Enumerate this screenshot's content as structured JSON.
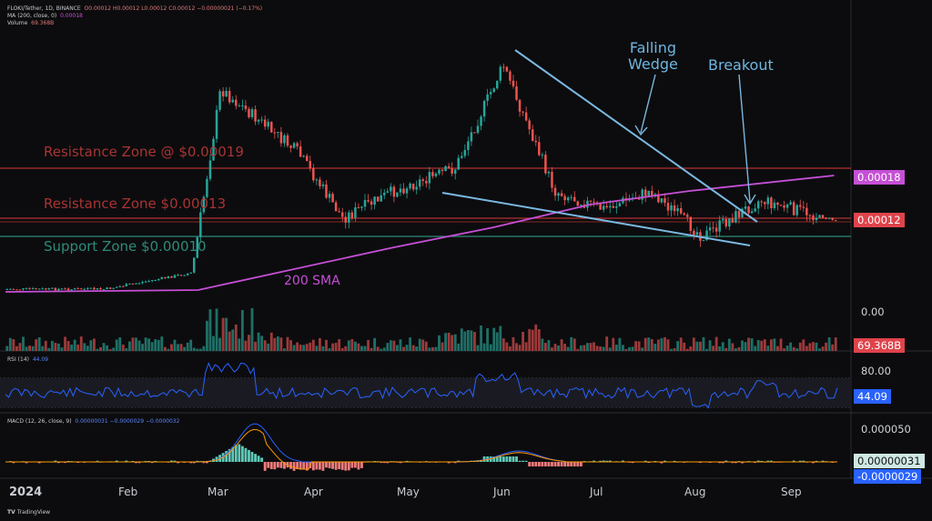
{
  "legend": {
    "symbol_line": "FLOKI/Tether, 1D, BINANCE",
    "ohlc": "O0.00012  H0.00012  L0.00012  C0.00012  −0.00000021 (−0.17%)",
    "ma_line": "MA (200, close, 0)",
    "ma_value": "0.00018",
    "volume_line": "Volume",
    "volume_value": "69.368B",
    "rsi_line": "RSI (14)",
    "rsi_value": "44.09",
    "macd_line": "MACD (12, 26, close, 9)",
    "macd_values": "0.00000031  −0.0000029  −0.0000032"
  },
  "price_axis": {
    "ma_badge": "0.00018",
    "last_badge": "0.00012",
    "volume_zero": "0.00",
    "volume_badge": "69.368B",
    "rsi_top": "80.00",
    "rsi_badge": "44.09",
    "macd_top": "0.000050",
    "macd_badge1": "0.00000031",
    "macd_badge2": "-0.0000029"
  },
  "x_axis": [
    "2024",
    "Feb",
    "Mar",
    "Apr",
    "May",
    "Jun",
    "Jul",
    "Aug",
    "Sep"
  ],
  "annotations": {
    "falling_wedge": "Falling\nWedge",
    "breakout": "Breakout",
    "sma_label": "200 SMA",
    "resistance_1": "Resistance Zone @ $0.00019",
    "resistance_2": "Resistance Zone $0.00013",
    "support": "Support Zone $0.00010"
  },
  "footer": {
    "brand": "TradingView"
  },
  "colors": {
    "up": "#26a69a",
    "down": "#ef5350",
    "ma": "#c64fd6",
    "wedge": "#7ab8e0",
    "resistance": "#b23030",
    "support": "#2e8b7a",
    "rsi": "#2962ff"
  },
  "chart_data": {
    "type": "line",
    "title": "",
    "series": [
      {
        "name": "FLOKI/Tether",
        "x": [
          "2024-01-01",
          "2024-02-01",
          "2024-02-28",
          "2024-03-08",
          "2024-04-01",
          "2024-04-15",
          "2024-05-01",
          "2024-05-20",
          "2024-06-04",
          "2024-06-20",
          "2024-07-05",
          "2024-07-20",
          "2024-08-05",
          "2024-08-23",
          "2024-09-15"
        ],
        "values": [
          3e-05,
          3e-05,
          5e-05,
          0.00024,
          0.0002,
          0.00013,
          0.00016,
          0.00019,
          0.00031,
          0.00016,
          0.00014,
          0.00016,
          0.0001,
          0.00015,
          0.00012
        ]
      },
      {
        "name": "MA (200, close, 0)",
        "x": [
          "2024-01-01",
          "2024-03-01",
          "2024-05-01",
          "2024-06-01",
          "2024-07-01",
          "2024-08-01",
          "2024-09-15"
        ],
        "values": [
          2.5e-05,
          2.8e-05,
          8e-05,
          0.00011,
          0.00013,
          0.00015,
          0.00018
        ]
      }
    ],
    "volume": {
      "name": "Volume",
      "last": "69.368B"
    },
    "rsi": {
      "name": "RSI (14)",
      "last": 44.09,
      "upper": 80
    },
    "macd": {
      "name": "MACD (12, 26, close, 9)",
      "last": [
        3.1e-07,
        -2.9e-06,
        -3.2e-06
      ]
    }
  }
}
